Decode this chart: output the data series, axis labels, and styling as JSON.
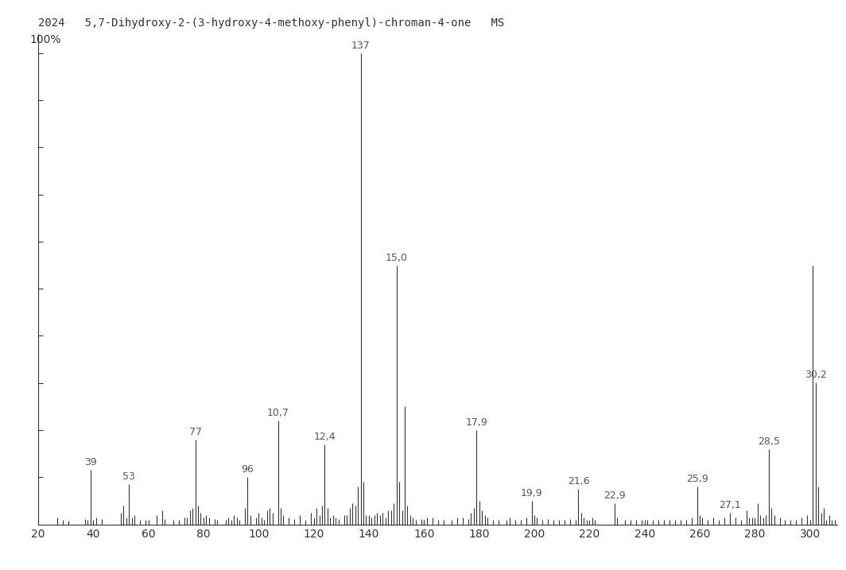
{
  "title": "2024   5,7-Dihydroxy-2-(3-hydroxy-4-methoxy-phenyl)-chroman-4-one   MS",
  "xlim": [
    20,
    310
  ],
  "ylim": [
    0,
    105
  ],
  "plot_ylim": [
    0,
    100
  ],
  "xlabel_ticks": [
    20,
    40,
    60,
    80,
    100,
    120,
    140,
    160,
    180,
    200,
    220,
    240,
    260,
    280,
    300
  ],
  "ytick_positions": [
    10,
    20,
    30,
    40,
    50,
    60,
    70,
    80,
    90,
    100
  ],
  "ylabel_label": "100%",
  "peaks": [
    [
      27,
      1.5
    ],
    [
      29,
      1.0
    ],
    [
      31,
      0.8
    ],
    [
      37,
      1.2
    ],
    [
      38,
      1.0
    ],
    [
      39,
      11.5
    ],
    [
      40,
      0.8
    ],
    [
      41,
      1.5
    ],
    [
      43,
      1.2
    ],
    [
      50,
      2.5
    ],
    [
      51,
      4.0
    ],
    [
      52,
      1.5
    ],
    [
      53,
      8.5
    ],
    [
      54,
      1.5
    ],
    [
      55,
      2.0
    ],
    [
      57,
      1.0
    ],
    [
      59,
      1.0
    ],
    [
      63,
      2.0
    ],
    [
      65,
      3.0
    ],
    [
      66,
      1.2
    ],
    [
      69,
      1.0
    ],
    [
      71,
      1.0
    ],
    [
      73,
      1.5
    ],
    [
      74,
      1.5
    ],
    [
      75,
      3.0
    ],
    [
      76,
      3.5
    ],
    [
      77,
      18.0
    ],
    [
      78,
      4.0
    ],
    [
      79,
      2.5
    ],
    [
      80,
      1.5
    ],
    [
      81,
      2.0
    ],
    [
      82,
      1.5
    ],
    [
      84,
      1.2
    ],
    [
      85,
      1.0
    ],
    [
      88,
      1.0
    ],
    [
      89,
      1.5
    ],
    [
      90,
      1.0
    ],
    [
      91,
      2.0
    ],
    [
      92,
      1.5
    ],
    [
      93,
      1.0
    ],
    [
      95,
      3.5
    ],
    [
      96,
      10.0
    ],
    [
      97,
      2.0
    ],
    [
      99,
      1.5
    ],
    [
      100,
      2.5
    ],
    [
      101,
      1.5
    ],
    [
      102,
      1.0
    ],
    [
      103,
      3.0
    ],
    [
      104,
      3.5
    ],
    [
      105,
      2.5
    ],
    [
      107,
      22.0
    ],
    [
      108,
      3.5
    ],
    [
      109,
      2.0
    ],
    [
      111,
      1.5
    ],
    [
      113,
      1.2
    ],
    [
      115,
      2.0
    ],
    [
      117,
      1.0
    ],
    [
      119,
      2.5
    ],
    [
      120,
      1.5
    ],
    [
      121,
      3.5
    ],
    [
      122,
      2.0
    ],
    [
      123,
      4.0
    ],
    [
      124,
      17.0
    ],
    [
      125,
      3.5
    ],
    [
      126,
      1.5
    ],
    [
      127,
      2.0
    ],
    [
      128,
      1.5
    ],
    [
      129,
      1.2
    ],
    [
      131,
      2.0
    ],
    [
      132,
      2.0
    ],
    [
      133,
      3.5
    ],
    [
      134,
      4.5
    ],
    [
      135,
      4.0
    ],
    [
      136,
      8.0
    ],
    [
      137,
      100.0
    ],
    [
      138,
      9.0
    ],
    [
      139,
      2.0
    ],
    [
      140,
      2.0
    ],
    [
      141,
      1.5
    ],
    [
      142,
      2.0
    ],
    [
      143,
      2.5
    ],
    [
      144,
      2.0
    ],
    [
      145,
      2.5
    ],
    [
      146,
      1.5
    ],
    [
      147,
      3.0
    ],
    [
      148,
      3.0
    ],
    [
      149,
      4.5
    ],
    [
      150,
      55.0
    ],
    [
      151,
      9.0
    ],
    [
      152,
      3.0
    ],
    [
      153,
      25.0
    ],
    [
      154,
      4.0
    ],
    [
      155,
      2.0
    ],
    [
      156,
      1.5
    ],
    [
      157,
      1.0
    ],
    [
      159,
      1.2
    ],
    [
      160,
      1.0
    ],
    [
      161,
      1.5
    ],
    [
      163,
      1.5
    ],
    [
      165,
      1.0
    ],
    [
      167,
      1.0
    ],
    [
      170,
      1.0
    ],
    [
      172,
      1.5
    ],
    [
      174,
      1.5
    ],
    [
      176,
      1.2
    ],
    [
      177,
      2.5
    ],
    [
      178,
      3.5
    ],
    [
      179,
      20.0
    ],
    [
      180,
      5.0
    ],
    [
      181,
      3.0
    ],
    [
      182,
      2.0
    ],
    [
      183,
      1.5
    ],
    [
      185,
      1.0
    ],
    [
      187,
      1.0
    ],
    [
      190,
      1.0
    ],
    [
      191,
      1.5
    ],
    [
      193,
      1.0
    ],
    [
      195,
      1.0
    ],
    [
      197,
      1.5
    ],
    [
      199,
      5.0
    ],
    [
      200,
      2.0
    ],
    [
      201,
      1.5
    ],
    [
      203,
      1.0
    ],
    [
      205,
      1.2
    ],
    [
      207,
      1.0
    ],
    [
      209,
      1.0
    ],
    [
      211,
      1.0
    ],
    [
      213,
      1.2
    ],
    [
      215,
      1.0
    ],
    [
      216,
      7.5
    ],
    [
      217,
      2.5
    ],
    [
      218,
      1.5
    ],
    [
      219,
      1.0
    ],
    [
      221,
      1.5
    ],
    [
      222,
      1.0
    ],
    [
      229,
      4.5
    ],
    [
      230,
      1.5
    ],
    [
      233,
      1.0
    ],
    [
      235,
      1.0
    ],
    [
      237,
      1.0
    ],
    [
      239,
      1.0
    ],
    [
      241,
      1.0
    ],
    [
      243,
      1.0
    ],
    [
      245,
      1.0
    ],
    [
      247,
      1.0
    ],
    [
      249,
      1.0
    ],
    [
      251,
      1.0
    ],
    [
      253,
      1.0
    ],
    [
      255,
      1.0
    ],
    [
      257,
      1.5
    ],
    [
      259,
      8.0
    ],
    [
      260,
      2.0
    ],
    [
      261,
      1.5
    ],
    [
      263,
      1.0
    ],
    [
      265,
      1.5
    ],
    [
      267,
      1.0
    ],
    [
      269,
      1.5
    ],
    [
      271,
      2.5
    ],
    [
      273,
      1.5
    ],
    [
      275,
      1.0
    ],
    [
      277,
      3.0
    ],
    [
      278,
      1.5
    ],
    [
      279,
      1.5
    ],
    [
      280,
      1.5
    ],
    [
      281,
      4.5
    ],
    [
      282,
      2.0
    ],
    [
      283,
      1.5
    ],
    [
      284,
      2.0
    ],
    [
      285,
      16.0
    ],
    [
      286,
      3.5
    ],
    [
      287,
      2.0
    ],
    [
      289,
      1.5
    ],
    [
      291,
      1.0
    ],
    [
      293,
      1.0
    ],
    [
      295,
      1.0
    ],
    [
      297,
      1.5
    ],
    [
      299,
      2.0
    ],
    [
      301,
      55.0
    ],
    [
      302,
      30.2
    ],
    [
      303,
      8.0
    ],
    [
      304,
      2.5
    ],
    [
      305,
      3.5
    ],
    [
      306,
      1.0
    ],
    [
      307,
      2.0
    ],
    [
      308,
      1.0
    ],
    [
      309,
      1.0
    ]
  ],
  "labeled_peaks": [
    [
      39,
      11.5,
      "39",
      0,
      0.5
    ],
    [
      53,
      8.5,
      "53",
      0,
      0.5
    ],
    [
      77,
      18.0,
      "77",
      0,
      0.5
    ],
    [
      96,
      10.0,
      "96",
      0,
      0.5
    ],
    [
      107,
      22.0,
      "10,7",
      0,
      0.5
    ],
    [
      124,
      17.0,
      "12,4",
      0,
      0.5
    ],
    [
      137,
      100.0,
      "137",
      0,
      0.5
    ],
    [
      150,
      55.0,
      "15,0",
      0,
      0.5
    ],
    [
      179,
      20.0,
      "17,9",
      0,
      0.5
    ],
    [
      199,
      5.0,
      "19,9",
      0,
      0.5
    ],
    [
      216,
      7.5,
      "21,6",
      0,
      0.5
    ],
    [
      229,
      4.5,
      "22,9",
      0,
      0.5
    ],
    [
      259,
      8.0,
      "25,9",
      0,
      0.5
    ],
    [
      271,
      2.5,
      "27,1",
      0,
      0.5
    ],
    [
      285,
      16.0,
      "28,5",
      0,
      0.5
    ],
    [
      302,
      30.2,
      "30,2",
      0,
      0.5
    ]
  ],
  "line_color": "#333333",
  "background_color": "#ffffff",
  "title_fontsize": 10,
  "tick_fontsize": 10,
  "label_fontsize": 9
}
